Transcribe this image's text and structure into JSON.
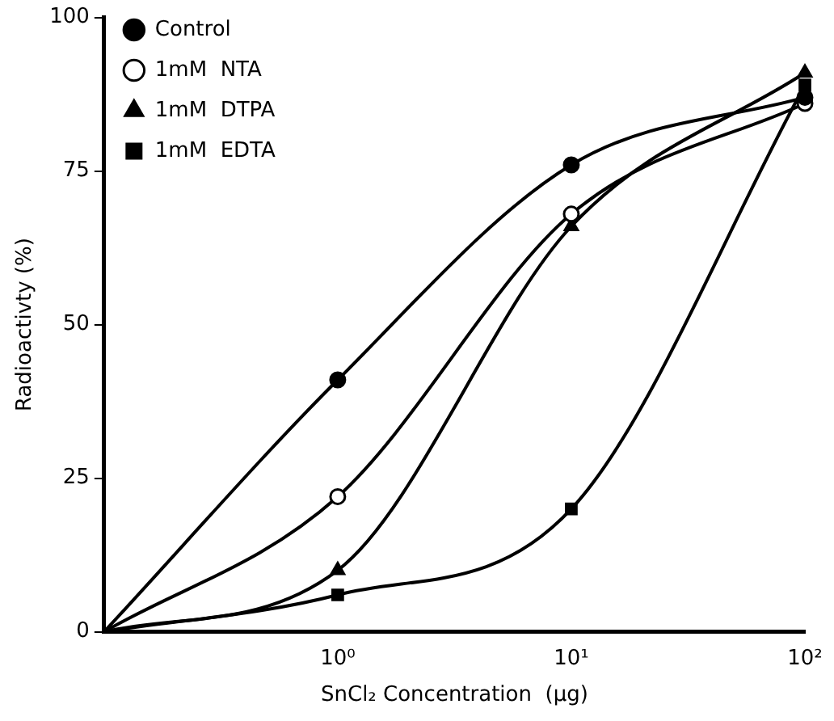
{
  "chart_data": {
    "type": "line",
    "xlabel": "SnCl₂ Concentration  (μg)",
    "ylabel": "Radioactivty (%)",
    "log": "x",
    "xlim": [
      0.1,
      100
    ],
    "xticks": [
      {
        "value": 1,
        "label": "10⁰"
      },
      {
        "value": 10,
        "label": "10¹"
      },
      {
        "value": 100,
        "label": "10²"
      }
    ],
    "ylim": [
      0,
      100
    ],
    "yticks": [
      0,
      25,
      50,
      75,
      100
    ],
    "grid": false,
    "legend": "top left",
    "line_style": "solid",
    "x": [
      0.1,
      1,
      10,
      100
    ],
    "series": [
      {
        "name": "Control",
        "color": "#000000",
        "marker": "circle",
        "values": [
          0,
          41,
          76,
          87
        ]
      },
      {
        "name": "1mM  NTA",
        "color": "#000000",
        "marker": "circle",
        "values": [
          0,
          22,
          68,
          86
        ]
      },
      {
        "name": "1mM  DTPA",
        "color": "#000000",
        "marker": "triangle",
        "values": [
          0,
          10,
          66,
          91
        ]
      },
      {
        "name": "1mM  EDTA",
        "color": "#000000",
        "marker": "square",
        "values": [
          0,
          6,
          20,
          89
        ]
      }
    ]
  }
}
